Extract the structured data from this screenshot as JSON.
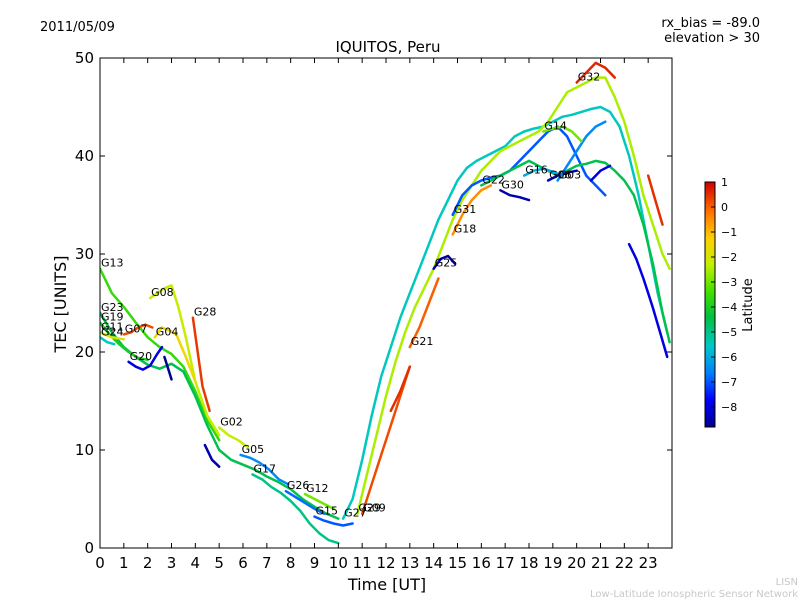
{
  "header": {
    "date": "2011/05/09",
    "bias": "rx_bias = -89.0",
    "elevation": "elevation > 30",
    "title": "IQUITOS, Peru"
  },
  "credits": {
    "line1": "LISN",
    "line2": "Low-Latitude Ionospheric Sensor Network"
  },
  "chart_data": {
    "type": "line",
    "title": "IQUITOS, Peru",
    "xlabel": "Time [UT]",
    "ylabel": "TEC [UNITS]",
    "xlim": [
      0,
      24
    ],
    "ylim": [
      0,
      50
    ],
    "xticks": [
      "0",
      "1",
      "2",
      "3",
      "4",
      "5",
      "6",
      "7",
      "8",
      "9",
      "10",
      "11",
      "12",
      "13",
      "14",
      "15",
      "16",
      "17",
      "18",
      "19",
      "20",
      "21",
      "22",
      "23"
    ],
    "yticks": [
      "0",
      "10",
      "20",
      "30",
      "40",
      "50"
    ],
    "grid": false,
    "colorbar": {
      "label": "Latitude",
      "min": -8.8,
      "max": 1.0,
      "ticks": [
        "1",
        "0",
        "−1",
        "−2",
        "−3",
        "−4",
        "−5",
        "−6",
        "−7",
        "−8"
      ],
      "tick_values": [
        1,
        0,
        -1,
        -2,
        -3,
        -4,
        -5,
        -6,
        -7,
        -8
      ]
    },
    "series": [
      {
        "name": "G13",
        "lat": -3.6,
        "x": [
          0.0,
          0.5,
          1.0,
          1.5,
          2.0,
          2.5,
          3.0,
          3.5,
          4.0,
          4.5,
          5.0
        ],
        "y": [
          28.5,
          26.0,
          24.6,
          23.0,
          21.5,
          20.5,
          19.8,
          18.5,
          16.0,
          13.0,
          11.0
        ]
      },
      {
        "name": "G23",
        "lat": -4.5,
        "x": [
          0.0,
          0.5,
          1.0,
          1.5,
          2.0,
          2.5,
          3.0,
          3.5,
          4.0,
          4.5,
          5.0,
          5.5,
          6.0,
          6.5,
          7.0,
          7.5,
          8.0,
          8.5,
          9.0,
          9.5,
          10.0
        ],
        "y": [
          24.0,
          22.0,
          20.5,
          19.5,
          18.7,
          18.3,
          18.8,
          18.0,
          15.5,
          12.5,
          10.0,
          9.0,
          8.5,
          8.0,
          7.3,
          6.7,
          6.0,
          5.0,
          4.2,
          3.5,
          3.0
        ]
      },
      {
        "name": "G19",
        "lat": -4.0,
        "x": [
          0.0,
          0.4,
          0.8,
          1.2,
          1.6,
          2.0
        ],
        "y": [
          23.0,
          21.8,
          20.8,
          20.0,
          19.4,
          19.2
        ]
      },
      {
        "name": "G11",
        "lat": -1.8,
        "x": [
          0.0,
          0.5,
          1.0
        ],
        "y": [
          22.0,
          21.5,
          21.3
        ]
      },
      {
        "name": "G24",
        "lat": -5.5,
        "x": [
          0.0,
          0.3,
          0.6
        ],
        "y": [
          21.5,
          21.0,
          20.8
        ]
      },
      {
        "name": "G07",
        "lat": 0.2,
        "x": [
          1.0,
          1.3,
          1.6,
          1.9,
          2.2
        ],
        "y": [
          21.8,
          22.0,
          22.5,
          22.8,
          22.5
        ]
      },
      {
        "name": "G20",
        "lat": -8.0,
        "x": [
          1.2,
          1.5,
          1.8,
          2.1,
          2.4,
          2.6
        ],
        "y": [
          19.0,
          18.5,
          18.2,
          18.6,
          19.8,
          20.5
        ]
      },
      {
        "name": "G08",
        "lat": -2.2,
        "x": [
          2.1,
          2.4,
          2.7,
          3.0,
          3.3,
          3.6,
          4.0,
          4.5,
          5.0
        ],
        "y": [
          25.5,
          26.0,
          26.5,
          26.8,
          24.5,
          21.5,
          17.0,
          13.5,
          11.5
        ]
      },
      {
        "name": "G04",
        "lat": -1.5,
        "x": [
          2.3,
          2.6,
          2.9,
          3.2,
          3.6,
          4.0
        ],
        "y": [
          21.5,
          22.5,
          22.2,
          21.8,
          19.5,
          17.0
        ]
      },
      {
        "name": "G28",
        "lat": 0.4,
        "x": [
          3.9,
          4.1,
          4.3,
          4.6
        ],
        "y": [
          23.5,
          20.0,
          16.5,
          14.0
        ]
      },
      {
        "name": "G02",
        "lat": -2.2,
        "x": [
          5.0,
          5.4,
          5.8,
          6.2
        ],
        "y": [
          12.3,
          11.5,
          11.0,
          10.3
        ]
      },
      {
        "name": "G05",
        "lat": -6.5,
        "x": [
          5.9,
          6.3,
          6.7,
          7.1,
          7.5,
          7.9
        ],
        "y": [
          9.5,
          9.2,
          8.7,
          8.0,
          7.0,
          6.5
        ]
      },
      {
        "name": "G17",
        "lat": -5.0,
        "x": [
          6.4,
          6.8,
          7.2,
          7.6,
          8.0,
          8.4,
          8.8,
          9.2,
          9.6,
          10.0
        ],
        "y": [
          7.5,
          7.0,
          6.2,
          5.6,
          4.8,
          3.8,
          2.5,
          1.5,
          0.8,
          0.5
        ]
      },
      {
        "name": "G26",
        "lat": -6.8,
        "x": [
          7.8,
          8.2,
          8.6,
          9.0,
          9.4
        ],
        "y": [
          5.8,
          5.2,
          4.6,
          4.0,
          3.5
        ]
      },
      {
        "name": "G12",
        "lat": -3.0,
        "x": [
          8.6,
          9.0,
          9.4,
          9.8
        ],
        "y": [
          5.5,
          5.0,
          4.5,
          4.0
        ]
      },
      {
        "name": "G15",
        "lat": -7.0,
        "x": [
          9.0,
          9.4,
          9.8,
          10.2,
          10.6
        ],
        "y": [
          3.2,
          2.8,
          2.5,
          2.3,
          2.5
        ]
      },
      {
        "name": "G27",
        "lat": -5.5,
        "x": [
          10.2,
          10.6,
          11.0,
          11.4,
          11.8,
          12.2,
          12.6,
          13.0,
          13.4,
          13.8,
          14.2,
          14.6,
          15.0,
          15.4,
          15.8,
          16.2,
          16.6,
          17.0,
          17.4,
          17.8,
          18.2,
          18.6,
          19.0,
          19.4,
          19.8,
          20.2,
          20.6,
          21.0,
          21.4,
          21.8,
          22.2,
          22.6,
          23.0,
          23.4,
          23.8
        ],
        "y": [
          3.0,
          5.0,
          9.0,
          13.5,
          17.5,
          20.5,
          23.5,
          26.0,
          28.5,
          31.0,
          33.5,
          35.5,
          37.5,
          38.8,
          39.5,
          40.0,
          40.5,
          41.0,
          42.0,
          42.5,
          42.8,
          43.0,
          43.5,
          44.0,
          44.2,
          44.5,
          44.8,
          45.0,
          44.5,
          43.0,
          40.0,
          36.0,
          31.0,
          26.0,
          22.0
        ]
      },
      {
        "name": "G29",
        "lat": -2.5,
        "x": [
          10.8,
          11.2,
          11.6,
          12.0,
          12.4,
          12.8,
          13.2,
          13.6,
          14.0,
          14.4,
          14.8,
          15.2,
          15.6,
          16.0,
          16.4,
          16.8,
          17.2,
          17.6,
          18.0,
          18.4,
          18.8,
          19.2,
          19.6,
          20.0,
          20.4,
          20.8,
          21.2,
          21.6,
          22.0,
          22.4,
          22.8,
          23.2,
          23.6,
          23.9
        ],
        "y": [
          3.5,
          7.5,
          11.5,
          15.5,
          19.0,
          22.0,
          24.5,
          26.5,
          28.5,
          31.0,
          33.5,
          35.5,
          37.0,
          38.5,
          39.5,
          40.5,
          41.0,
          41.5,
          42.0,
          42.5,
          43.5,
          45.0,
          46.5,
          47.0,
          47.5,
          48.0,
          48.0,
          46.0,
          43.5,
          40.0,
          36.0,
          33.0,
          30.0,
          28.5
        ]
      },
      {
        "name": "G09",
        "lat": 0.2,
        "x": [
          11.0,
          11.4,
          11.8,
          12.2,
          12.6,
          13.0
        ],
        "y": [
          3.5,
          6.5,
          9.5,
          12.5,
          15.5,
          18.5
        ]
      },
      {
        "name": "G21",
        "lat": 0.0,
        "x": [
          13.0,
          13.4,
          13.8,
          14.2
        ],
        "y": [
          20.5,
          22.5,
          25.0,
          27.5
        ]
      },
      {
        "name": "G25",
        "lat": -8.5,
        "x": [
          14.0,
          14.3,
          14.6,
          14.9
        ],
        "y": [
          28.5,
          29.5,
          29.8,
          29.0
        ]
      },
      {
        "name": "G18",
        "lat": -0.5,
        "x": [
          14.8,
          15.2,
          15.6,
          16.0,
          16.4
        ],
        "y": [
          32.0,
          34.0,
          35.5,
          36.5,
          37.0
        ]
      },
      {
        "name": "G31",
        "lat": -7.0,
        "x": [
          14.8,
          15.2,
          15.6,
          16.0,
          16.4,
          16.8,
          17.2,
          17.6,
          18.0,
          18.4,
          18.8,
          19.2,
          19.6,
          20.0,
          20.4,
          20.8,
          21.2
        ],
        "y": [
          34.0,
          36.0,
          37.0,
          37.5,
          37.8,
          38.0,
          38.5,
          39.5,
          40.5,
          41.5,
          42.5,
          43.0,
          42.0,
          40.0,
          38.0,
          37.0,
          36.0
        ]
      },
      {
        "name": "G22",
        "lat": -4.5,
        "x": [
          16.0,
          16.4,
          16.8,
          17.2,
          17.6,
          18.0,
          18.4,
          18.8,
          19.2,
          19.6,
          20.0,
          20.4,
          20.8,
          21.2,
          21.6,
          22.0,
          22.4,
          22.8,
          23.2,
          23.6,
          23.9
        ],
        "y": [
          37.0,
          37.5,
          38.0,
          38.5,
          39.0,
          39.5,
          39.0,
          38.5,
          38.0,
          38.5,
          39.0,
          39.2,
          39.5,
          39.3,
          38.5,
          37.5,
          36.0,
          33.0,
          29.0,
          24.0,
          21.0
        ]
      },
      {
        "name": "G30",
        "lat": -8.5,
        "x": [
          16.8,
          17.2,
          17.6,
          18.0
        ],
        "y": [
          36.5,
          36.0,
          35.8,
          35.5
        ]
      },
      {
        "name": "G16",
        "lat": -6.0,
        "x": [
          17.8,
          18.2,
          18.6,
          19.0,
          19.4
        ],
        "y": [
          38.0,
          38.5,
          38.7,
          38.4,
          38.0
        ]
      },
      {
        "name": "G06",
        "lat": -8.3,
        "x": [
          18.8,
          19.2,
          19.6,
          20.0
        ],
        "y": [
          37.5,
          38.0,
          38.3,
          38.5
        ]
      },
      {
        "name": "G03",
        "lat": -6.5,
        "x": [
          19.2,
          19.6,
          20.0,
          20.4,
          20.8,
          21.2
        ],
        "y": [
          37.5,
          39.0,
          40.5,
          42.0,
          43.0,
          43.5
        ]
      },
      {
        "name": "G14",
        "lat": -3.0,
        "x": [
          18.6,
          19.0,
          19.4,
          19.8,
          20.2
        ],
        "y": [
          42.5,
          42.8,
          43.0,
          42.5,
          41.5
        ]
      },
      {
        "name": "G32",
        "lat": 0.6,
        "x": [
          20.0,
          20.4,
          20.8,
          21.2,
          21.6
        ],
        "y": [
          47.5,
          48.5,
          49.5,
          49.0,
          48.0
        ]
      }
    ],
    "extra_segments": [
      {
        "lat": -8.0,
        "x": [
          22.2,
          22.5,
          22.8,
          23.0,
          23.2,
          23.5,
          23.8
        ],
        "y": [
          31.0,
          29.5,
          27.5,
          26.0,
          24.5,
          22.0,
          19.5
        ]
      },
      {
        "lat": 0.5,
        "x": [
          23.0,
          23.3,
          23.6
        ],
        "y": [
          38.0,
          35.5,
          33.0
        ]
      },
      {
        "lat": -8.0,
        "x": [
          20.6,
          21.0,
          21.4
        ],
        "y": [
          37.5,
          38.5,
          39.0
        ]
      },
      {
        "lat": -8.5,
        "x": [
          4.4,
          4.7,
          5.0
        ],
        "y": [
          10.5,
          9.0,
          8.3
        ]
      },
      {
        "lat": -8.8,
        "x": [
          2.7,
          2.9,
          3.0
        ],
        "y": [
          19.5,
          18.0,
          17.2
        ]
      },
      {
        "lat": 0.5,
        "x": [
          12.2,
          12.6,
          13.0
        ],
        "y": [
          14.0,
          16.0,
          18.5
        ]
      }
    ]
  }
}
